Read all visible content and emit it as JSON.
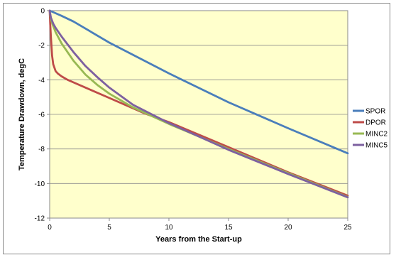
{
  "chart_data": {
    "type": "line",
    "title": "",
    "xlabel": "Years from the Start-up",
    "ylabel": "Temperature Drawdown, degC",
    "xlim": [
      0,
      25
    ],
    "ylim": [
      -12,
      0
    ],
    "xticks": [
      0,
      5,
      10,
      15,
      20,
      25
    ],
    "yticks": [
      0,
      -2,
      -4,
      -6,
      -8,
      -10,
      -12
    ],
    "grid": "horizontal",
    "plot_background": "#ffffcc",
    "legend_position": "right",
    "series": [
      {
        "name": "SPOR",
        "color": "#4a7ebb",
        "x": [
          0,
          0.5,
          1,
          2,
          5,
          10,
          15,
          20,
          25
        ],
        "y": [
          0,
          -0.15,
          -0.3,
          -0.63,
          -1.85,
          -3.63,
          -5.3,
          -6.8,
          -8.25
        ]
      },
      {
        "name": "DPOR",
        "color": "#be4b48",
        "x": [
          0,
          0.05,
          0.1,
          0.2,
          0.3,
          0.5,
          0.7,
          1,
          1.5,
          2,
          3,
          5,
          8,
          10,
          15,
          20,
          25
        ],
        "y": [
          0,
          -0.8,
          -1.5,
          -2.6,
          -3.1,
          -3.5,
          -3.65,
          -3.8,
          -4.0,
          -4.15,
          -4.45,
          -5.05,
          -5.95,
          -6.45,
          -7.9,
          -9.35,
          -10.7
        ]
      },
      {
        "name": "MINC2",
        "color": "#98b954",
        "x": [
          0,
          0.1,
          0.3,
          0.5,
          1,
          2,
          3,
          4,
          5,
          7,
          10,
          15,
          20,
          25
        ],
        "y": [
          0,
          -0.5,
          -0.9,
          -1.25,
          -1.9,
          -2.9,
          -3.7,
          -4.3,
          -4.8,
          -5.6,
          -6.55,
          -8.0,
          -9.4,
          -10.78
        ]
      },
      {
        "name": "MINC5",
        "color": "#7d60a0",
        "x": [
          0,
          0.1,
          0.3,
          0.5,
          1,
          2,
          3,
          4,
          5,
          7,
          10,
          15,
          20,
          25
        ],
        "y": [
          0,
          -0.4,
          -0.75,
          -1.0,
          -1.5,
          -2.4,
          -3.2,
          -3.85,
          -4.45,
          -5.45,
          -6.5,
          -8.05,
          -9.45,
          -10.8
        ]
      }
    ]
  }
}
